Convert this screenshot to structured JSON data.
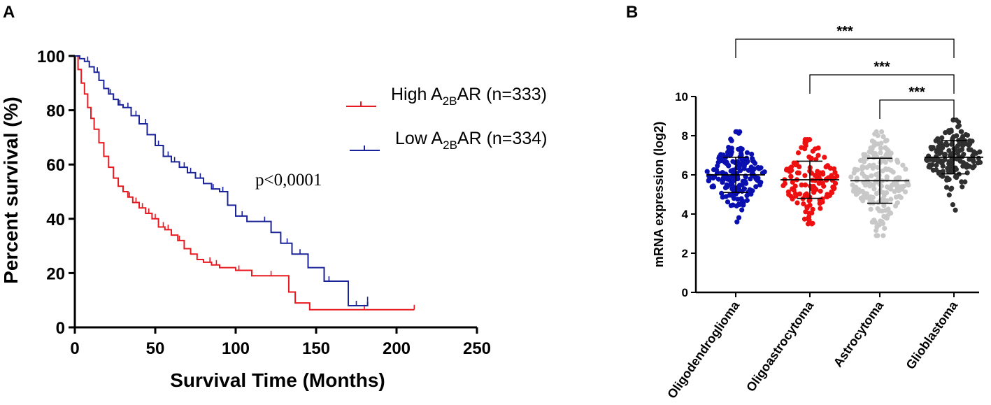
{
  "chart_data": [
    {
      "panel": "A",
      "type": "line",
      "subtype": "kaplan-meier",
      "xlabel": "Survival Time (Months)",
      "ylabel": "Percent survival (%)",
      "xlim": [
        0,
        250
      ],
      "ylim": [
        0,
        100
      ],
      "xticks": [
        0,
        50,
        100,
        150,
        200,
        250
      ],
      "yticks": [
        0,
        20,
        40,
        60,
        80,
        100
      ],
      "annotation": "p<0,0001",
      "series": [
        {
          "name": "High A2BAR (n=333)",
          "legend": {
            "pre": "High A",
            "sub": "2B",
            "post": "AR (n=333)"
          },
          "color": "#e8191f",
          "x": [
            0,
            2,
            4,
            6,
            8,
            10,
            12,
            15,
            18,
            21,
            24,
            27,
            30,
            33,
            36,
            40,
            44,
            48,
            52,
            56,
            60,
            64,
            68,
            72,
            76,
            80,
            85,
            90,
            100,
            110,
            120,
            125,
            133,
            137,
            146,
            160,
            180,
            211
          ],
          "y": [
            100,
            95,
            90,
            86,
            81,
            77,
            73,
            68,
            63,
            59,
            55,
            52,
            50,
            48,
            46,
            44,
            42,
            40,
            37,
            36,
            34,
            32,
            29,
            27,
            25,
            24,
            23,
            22,
            21,
            19,
            19,
            19,
            13,
            9,
            6.5,
            6.5,
            6.5,
            6.5
          ],
          "censor_x": [
            30,
            34,
            38,
            42,
            46,
            50,
            55,
            58,
            65,
            72,
            84,
            88,
            102,
            122,
            180,
            211
          ]
        },
        {
          "name": "Low A2BAR (n=334)",
          "legend": {
            "pre": "Low A",
            "sub": "2B",
            "post": "AR (n=334)"
          },
          "color": "#1a239a",
          "x": [
            0,
            3,
            6,
            9,
            12,
            15,
            18,
            21,
            24,
            27,
            30,
            35,
            40,
            45,
            50,
            55,
            60,
            65,
            70,
            75,
            80,
            85,
            90,
            95,
            100,
            107,
            115,
            122,
            128,
            135,
            145,
            155,
            170,
            182
          ],
          "y": [
            100,
            99,
            98,
            96,
            94,
            91,
            88,
            86,
            84,
            82,
            81,
            78,
            75,
            71,
            67,
            63,
            61,
            59,
            57,
            55,
            53,
            51,
            50,
            45,
            41,
            39,
            39,
            35,
            31,
            27,
            22,
            17,
            8,
            9.5
          ],
          "censor_x": [
            8,
            14,
            22,
            28,
            33,
            38,
            44,
            52,
            58,
            62,
            68,
            72,
            78,
            86,
            92,
            104,
            118,
            132,
            140,
            158,
            175,
            182
          ]
        }
      ]
    },
    {
      "panel": "B",
      "type": "scatter",
      "subtype": "dot-plot",
      "ylabel": "mRNA expression (log2)",
      "ylim": [
        0,
        10
      ],
      "yticks": [
        0,
        2,
        4,
        6,
        8,
        10
      ],
      "categories": [
        "Oligodendroglioma",
        "Oligoastrocytoma",
        "Astrocytoma",
        "Glioblastoma"
      ],
      "series": [
        {
          "name": "Oligodendroglioma",
          "color": "#0a10b0",
          "n": 190,
          "mean": 6.0,
          "sd": 0.9,
          "min": 3.6,
          "max": 8.2
        },
        {
          "name": "Oligoastrocytoma",
          "color": "#ee1010",
          "n": 130,
          "mean": 5.75,
          "sd": 0.95,
          "min": 3.5,
          "max": 7.8
        },
        {
          "name": "Astrocytoma",
          "color": "#c8c8c8",
          "n": 190,
          "mean": 5.7,
          "sd": 1.15,
          "min": 2.9,
          "max": 8.2
        },
        {
          "name": "Glioblastoma",
          "color": "#303030",
          "n": 160,
          "mean": 6.9,
          "sd": 0.85,
          "min": 4.2,
          "max": 8.8
        }
      ],
      "significance": [
        {
          "from": "Oligodendroglioma",
          "to": "Glioblastoma",
          "label": "***"
        },
        {
          "from": "Oligoastrocytoma",
          "to": "Glioblastoma",
          "label": "***"
        },
        {
          "from": "Astrocytoma",
          "to": "Glioblastoma",
          "label": "***"
        }
      ]
    }
  ]
}
